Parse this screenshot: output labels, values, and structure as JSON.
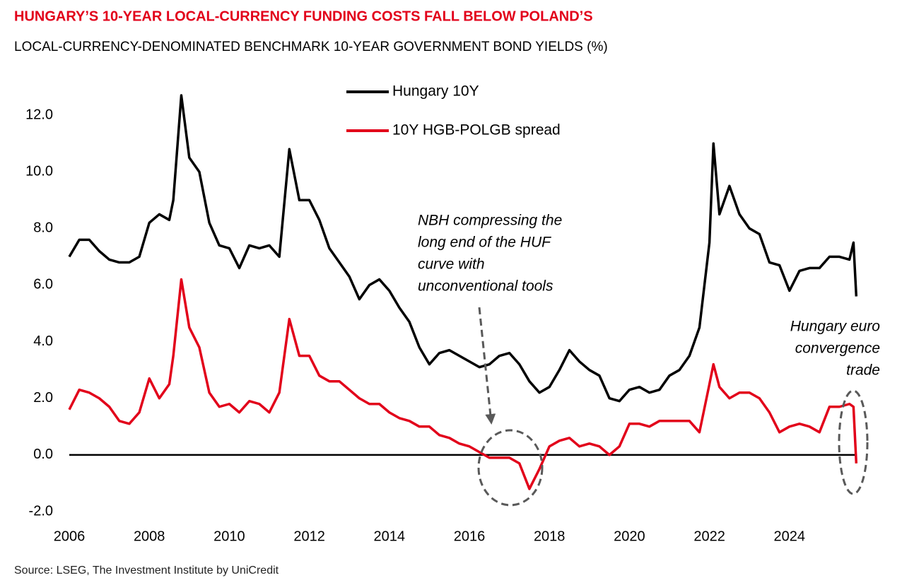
{
  "chart_data": {
    "type": "line",
    "title": "HUNGARY’S 10-YEAR LOCAL-CURRENCY FUNDING COSTS FALL BELOW POLAND’S",
    "subtitle": "LOCAL-CURRENCY-DENOMINATED BENCHMARK 10-YEAR GOVERNMENT BOND YIELDS (%)",
    "source": "Source: LSEG, The Investment Institute by UniCredit",
    "annotations": [
      {
        "lines": [
          "NBH compressing the",
          "long end of the HUF",
          "curve with",
          "unconventional tools"
        ]
      },
      {
        "lines": [
          "Hungary euro",
          "convergence",
          "trade"
        ]
      }
    ],
    "legend": "top",
    "zero_line": true,
    "x": [
      2006,
      2006.25,
      2006.5,
      2006.75,
      2007,
      2007.25,
      2007.5,
      2007.75,
      2008,
      2008.25,
      2008.5,
      2008.6,
      2008.8,
      2009,
      2009.25,
      2009.5,
      2009.75,
      2010,
      2010.25,
      2010.5,
      2010.75,
      2011,
      2011.25,
      2011.5,
      2011.75,
      2012,
      2012.25,
      2012.5,
      2012.75,
      2013,
      2013.25,
      2013.5,
      2013.75,
      2014,
      2014.25,
      2014.5,
      2014.75,
      2015,
      2015.25,
      2015.5,
      2015.75,
      2016,
      2016.25,
      2016.5,
      2016.75,
      2017,
      2017.25,
      2017.5,
      2017.75,
      2018,
      2018.25,
      2018.5,
      2018.75,
      2019,
      2019.25,
      2019.5,
      2019.75,
      2020,
      2020.25,
      2020.5,
      2020.75,
      2021,
      2021.25,
      2021.5,
      2021.75,
      2022,
      2022.1,
      2022.25,
      2022.5,
      2022.75,
      2023,
      2023.25,
      2023.5,
      2023.75,
      2024,
      2024.25,
      2024.5,
      2024.75,
      2025,
      2025.25,
      2025.5,
      2025.6,
      2025.67
    ],
    "series": [
      {
        "name": "Hungary 10Y",
        "color": "#000000",
        "values": [
          7.0,
          7.6,
          7.6,
          7.2,
          6.9,
          6.8,
          6.8,
          7.0,
          8.2,
          8.5,
          8.3,
          9.0,
          12.7,
          10.5,
          10.0,
          8.2,
          7.4,
          7.3,
          6.6,
          7.4,
          7.3,
          7.4,
          7.0,
          10.8,
          9.0,
          9.0,
          8.3,
          7.3,
          6.8,
          6.3,
          5.5,
          6.0,
          6.2,
          5.8,
          5.2,
          4.7,
          3.8,
          3.2,
          3.6,
          3.7,
          3.5,
          3.3,
          3.1,
          3.2,
          3.5,
          3.6,
          3.2,
          2.6,
          2.2,
          2.4,
          3.0,
          3.7,
          3.3,
          3.0,
          2.8,
          2.0,
          1.9,
          2.3,
          2.4,
          2.2,
          2.3,
          2.8,
          3.0,
          3.5,
          4.5,
          7.5,
          11.0,
          8.5,
          9.5,
          8.5,
          8.0,
          7.8,
          6.8,
          6.7,
          5.8,
          6.5,
          6.6,
          6.6,
          7.0,
          7.0,
          6.9,
          7.5,
          5.6
        ]
      },
      {
        "name": "10Y HGB-POLGB spread",
        "color": "#e2001a",
        "values": [
          1.6,
          2.3,
          2.2,
          2.0,
          1.7,
          1.2,
          1.1,
          1.5,
          2.7,
          2.0,
          2.5,
          3.5,
          6.2,
          4.5,
          3.8,
          2.2,
          1.7,
          1.8,
          1.5,
          1.9,
          1.8,
          1.5,
          2.2,
          4.8,
          3.5,
          3.5,
          2.8,
          2.6,
          2.6,
          2.3,
          2.0,
          1.8,
          1.8,
          1.5,
          1.3,
          1.2,
          1.0,
          1.0,
          0.7,
          0.6,
          0.4,
          0.3,
          0.1,
          -0.1,
          -0.1,
          -0.1,
          -0.3,
          -1.2,
          -0.5,
          0.3,
          0.5,
          0.6,
          0.3,
          0.4,
          0.3,
          0.0,
          0.3,
          1.1,
          1.1,
          1.0,
          1.2,
          1.2,
          1.2,
          1.2,
          0.8,
          2.5,
          3.2,
          2.4,
          2.0,
          2.2,
          2.2,
          2.0,
          1.5,
          0.8,
          1.0,
          1.1,
          1.0,
          0.8,
          1.7,
          1.7,
          1.8,
          1.7,
          -0.3
        ]
      }
    ],
    "xlim": [
      2006,
      2026
    ],
    "xticks": [
      2006,
      2008,
      2010,
      2012,
      2014,
      2016,
      2018,
      2020,
      2022,
      2024
    ],
    "ylim": [
      -2,
      13
    ],
    "yticks": [
      {
        "value": -2,
        "label": "-2.0"
      },
      {
        "value": 0,
        "label": "0.0"
      },
      {
        "value": 2,
        "label": "2.0"
      },
      {
        "value": 4,
        "label": "4.0"
      },
      {
        "value": 6,
        "label": "6.0"
      },
      {
        "value": 8,
        "label": "8.0"
      },
      {
        "value": 10,
        "label": "10.0"
      },
      {
        "value": 12,
        "label": "12.0"
      }
    ]
  }
}
